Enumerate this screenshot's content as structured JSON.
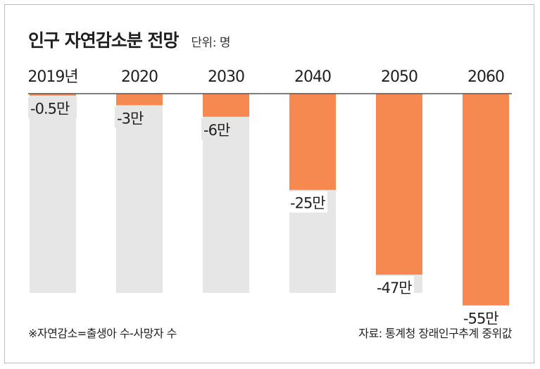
{
  "header": {
    "title": "인구 자연감소분 전망",
    "unit": "단위: 명"
  },
  "footer": {
    "note": "※자연감소=출생아 수-사망자 수",
    "source": "자료: 통계청 장래인구추계 중위값"
  },
  "colors": {
    "bar": "#f5894f",
    "track": "#e6e6e6",
    "axis": "#555555",
    "text": "#1f1f1f"
  },
  "chart_data": {
    "type": "bar",
    "orientation": "vertical-negative",
    "categories": [
      "2019년",
      "2020",
      "2030",
      "2040",
      "2050",
      "2060"
    ],
    "values": [
      -0.5,
      -3,
      -6,
      -25,
      -47,
      -55
    ],
    "value_labels": [
      "-0.5만",
      "-3만",
      "-6만",
      "-25만",
      "-47만",
      "-55만"
    ],
    "ylim": [
      -60,
      0
    ],
    "grid": false,
    "legend": "none"
  }
}
